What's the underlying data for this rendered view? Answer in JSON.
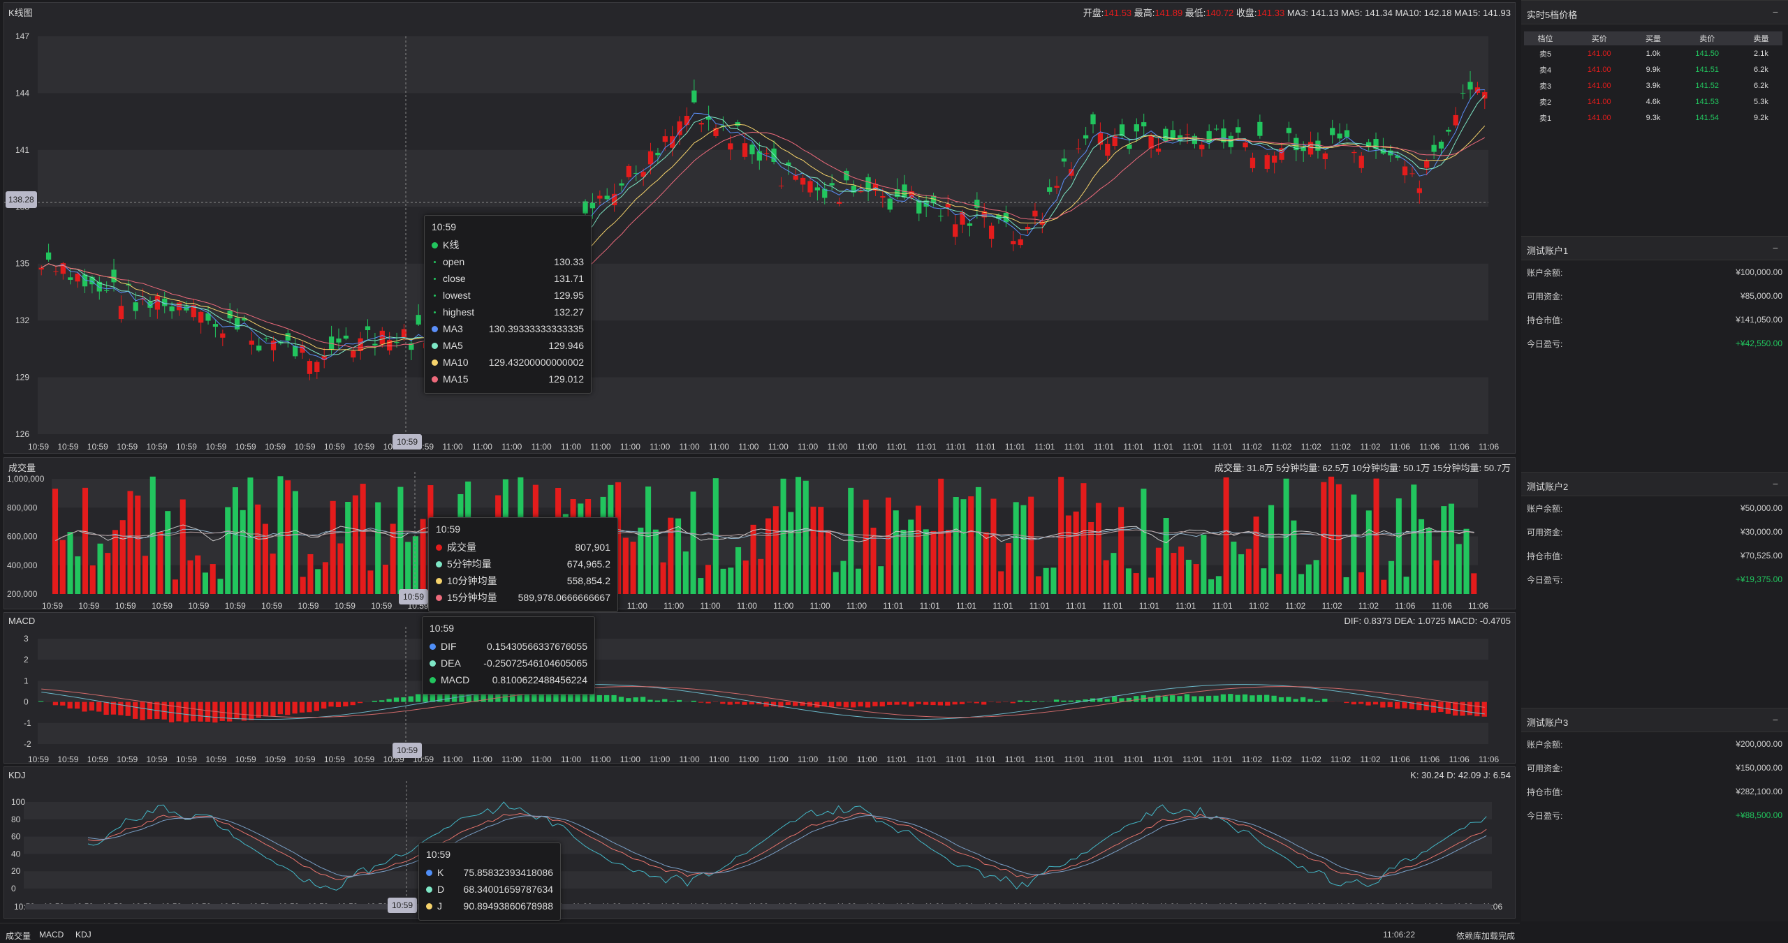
{
  "kline": {
    "title": "K线图",
    "info": {
      "open_label": "开盘:",
      "open": "141.53",
      "high_label": "最高:",
      "high": "141.89",
      "low_label": "最低:",
      "low": "140.72",
      "close_label": "收盘:",
      "close": "141.33",
      "ma_text": "MA3: 141.13 MA5: 141.34 MA10: 142.18 MA15: 141.93"
    },
    "y_ticks": [
      "147",
      "144",
      "141",
      "138",
      "135",
      "132",
      "129",
      "126"
    ],
    "cross_price": "138.28",
    "cross_time": "10:59",
    "tooltip": {
      "time": "10:59",
      "series": "K线",
      "open_label": "open",
      "open": "130.33",
      "close_label": "close",
      "close": "131.71",
      "low_label": "lowest",
      "low": "129.95",
      "high_label": "highest",
      "high": "132.27",
      "ma3_label": "MA3",
      "ma3": "130.39333333333335",
      "ma5_label": "MA5",
      "ma5": "129.946",
      "ma10_label": "MA10",
      "ma10": "129.43200000000002",
      "ma15_label": "MA15",
      "ma15": "129.012"
    }
  },
  "volume": {
    "title": "成交量",
    "info": "成交量: 31.8万 5分钟均量: 62.5万 10分钟均量: 50.1万 15分钟均量: 50.7万",
    "y_ticks": [
      "1,000,000",
      "800,000",
      "600,000",
      "400,000",
      "200,000"
    ],
    "cross_time": "10:59",
    "tooltip": {
      "time": "10:59",
      "vol_label": "成交量",
      "vol": "807,901",
      "ma5_label": "5分钟均量",
      "ma5": "674,965.2",
      "ma10_label": "10分钟均量",
      "ma10": "558,854.2",
      "ma15_label": "15分钟均量",
      "ma15": "589,978.0666666667"
    }
  },
  "macd": {
    "title": "MACD",
    "info": "DIF: 0.8373 DEA: 1.0725 MACD: -0.4705",
    "y_ticks": [
      "3",
      "2",
      "1",
      "0",
      "-1",
      "-2"
    ],
    "cross_time": "10:59",
    "tooltip": {
      "time": "10:59",
      "dif_label": "DIF",
      "dif": "0.15430566337676055",
      "dea_label": "DEA",
      "dea": "-0.25072546104605065",
      "macd_label": "MACD",
      "macd": "0.8100622488456224"
    }
  },
  "kdj": {
    "title": "KDJ",
    "info": "K: 30.24 D: 42.09 J: 6.54",
    "y_ticks": [
      "100",
      "80",
      "60",
      "40",
      "20",
      "0"
    ],
    "cross_time": "10:59",
    "tooltip": {
      "time": "10:59",
      "k_label": "K",
      "k": "75.85832393418086",
      "d_label": "D",
      "d": "68.34001659787634",
      "j_label": "J",
      "j": "90.89493860678988"
    }
  },
  "x_labels": {
    "kline": [
      "10:59",
      "10:59",
      "10:59",
      "10:59",
      "10:59",
      "10:59",
      "10:59",
      "10:59",
      "10:59",
      "10:59",
      "10:59",
      "10:59",
      "10:59",
      "10:59",
      "11:00",
      "11:00",
      "11:00",
      "11:00",
      "11:00",
      "11:00",
      "11:00",
      "11:00",
      "11:00",
      "11:00",
      "11:00",
      "11:00",
      "11:00",
      "11:00",
      "11:00",
      "11:01",
      "11:01",
      "11:01",
      "11:01",
      "11:01",
      "11:01",
      "11:01",
      "11:01",
      "11:01",
      "11:01",
      "11:01",
      "11:01",
      "11:02",
      "11:02",
      "11:02",
      "11:02",
      "11:02",
      "11:06",
      "11:06",
      "11:06",
      "11:06"
    ],
    "volume": [
      "10:59",
      "10:59",
      "10:59",
      "10:59",
      "10:59",
      "10:59",
      "10:59",
      "10:59",
      "10:59",
      "10:59",
      "10:59",
      "11:00",
      "11:00",
      "11:00",
      "11:00",
      "11:00",
      "11:00",
      "11:00",
      "11:00",
      "11:00",
      "11:00",
      "11:00",
      "11:00",
      "11:01",
      "11:01",
      "11:01",
      "11:01",
      "11:01",
      "11:01",
      "11:01",
      "11:01",
      "11:01",
      "11:01",
      "11:02",
      "11:02",
      "11:02",
      "11:02",
      "11:06",
      "11:06",
      "11:06"
    ],
    "macd": [
      "10:59",
      "10:59",
      "10:59",
      "10:59",
      "10:59",
      "10:59",
      "10:59",
      "10:59",
      "10:59",
      "10:59",
      "10:59",
      "10:59",
      "10:59",
      "10:59",
      "11:00",
      "11:00",
      "11:00",
      "11:00",
      "11:00",
      "11:00",
      "11:00",
      "11:00",
      "11:00",
      "11:00",
      "11:00",
      "11:00",
      "11:00",
      "11:00",
      "11:00",
      "11:01",
      "11:01",
      "11:01",
      "11:01",
      "11:01",
      "11:01",
      "11:01",
      "11:01",
      "11:01",
      "11:01",
      "11:01",
      "11:01",
      "11:02",
      "11:02",
      "11:02",
      "11:02",
      "11:02",
      "11:06",
      "11:06",
      "11:06",
      "11:06"
    ],
    "kdj": [
      "10:59",
      "10:59",
      "10:59",
      "10:59",
      "10:59",
      "10:59",
      "10:59",
      "10:59",
      "10:59",
      "10:59",
      "10:59",
      "10:59",
      "10:59",
      "10:59",
      "11:00",
      "11:00",
      "11:00",
      "11:00",
      "11:00",
      "11:00",
      "11:00",
      "11:00",
      "11:00",
      "11:00",
      "11:00",
      "11:00",
      "11:00",
      "11:00",
      "11:00",
      "11:01",
      "11:01",
      "11:01",
      "11:01",
      "11:01",
      "11:01",
      "11:01",
      "11:01",
      "11:01",
      "11:01",
      "11:01",
      "11:01",
      "11:02",
      "11:02",
      "11:02",
      "11:02",
      "11:02",
      "11:06",
      "11:06",
      "11:06",
      "11:06",
      "11:06"
    ]
  },
  "colors": {
    "up": "#e41c1c",
    "down": "#22c55e",
    "ma3": "#5b8ff9",
    "ma5": "#7ee7c6",
    "ma10": "#f6d36b",
    "ma15": "#ee6a7b",
    "k": "#4f8ef7",
    "d": "#e8736c",
    "j": "#43b7c7"
  },
  "orderbook": {
    "title": "实时5档价格",
    "headers": [
      "档位",
      "买价",
      "买量",
      "卖价",
      "卖量"
    ],
    "rows": [
      {
        "level": "卖5",
        "bid": "141.00",
        "bid_vol": "1.0k",
        "ask": "141.50",
        "ask_vol": "2.1k"
      },
      {
        "level": "卖4",
        "bid": "141.00",
        "bid_vol": "9.9k",
        "ask": "141.51",
        "ask_vol": "6.2k"
      },
      {
        "level": "卖3",
        "bid": "141.00",
        "bid_vol": "3.9k",
        "ask": "141.52",
        "ask_vol": "6.2k"
      },
      {
        "level": "卖2",
        "bid": "141.00",
        "bid_vol": "4.6k",
        "ask": "141.53",
        "ask_vol": "5.3k"
      },
      {
        "level": "卖1",
        "bid": "141.00",
        "bid_vol": "9.3k",
        "ask": "141.54",
        "ask_vol": "9.2k"
      }
    ]
  },
  "accounts": [
    {
      "title": "测试账户1",
      "balance_label": "账户余额:",
      "balance": "¥100,000.00",
      "available_label": "可用资金:",
      "available": "¥85,000.00",
      "position_label": "持仓市值:",
      "position": "¥141,050.00",
      "pnl_label": "今日盈亏:",
      "pnl": "+¥42,550.00"
    },
    {
      "title": "测试账户2",
      "balance_label": "账户余额:",
      "balance": "¥50,000.00",
      "available_label": "可用资金:",
      "available": "¥30,000.00",
      "position_label": "持仓市值:",
      "position": "¥70,525.00",
      "pnl_label": "今日盈亏:",
      "pnl": "+¥19,375.00"
    },
    {
      "title": "测试账户3",
      "balance_label": "账户余额:",
      "balance": "¥200,000.00",
      "available_label": "可用资金:",
      "available": "¥150,000.00",
      "position_label": "持仓市值:",
      "position": "¥282,100.00",
      "pnl_label": "今日盈亏:",
      "pnl": "+¥88,500.00"
    }
  ],
  "panel_min_icon": "−",
  "status": {
    "tab1": "成交量",
    "tab2": "MACD",
    "tab3": "KDJ",
    "clock": "11:06:22",
    "message": "依赖库加载完成"
  }
}
